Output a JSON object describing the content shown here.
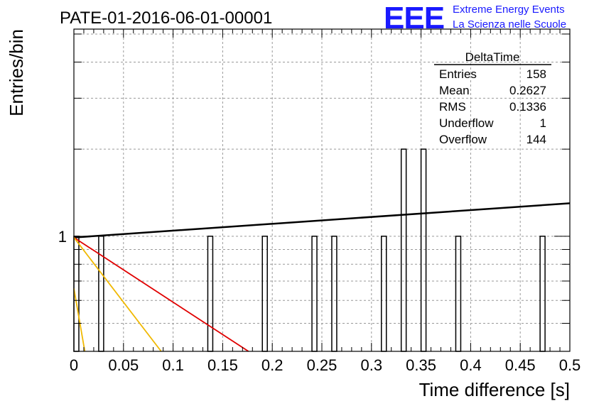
{
  "header": {
    "title": "PATE-01-2016-06-01-00001",
    "logo_text": "EEE",
    "logo_line1": "Extreme Energy Events",
    "logo_line2": "La Scienza nelle Scuole",
    "logo_color": "#1a1aff"
  },
  "stats_box": {
    "title": "DeltaTime",
    "rows": [
      {
        "label": "Entries",
        "value": "158"
      },
      {
        "label": "Mean",
        "value": "0.2627"
      },
      {
        "label": "RMS",
        "value": "0.1336"
      },
      {
        "label": "Underflow",
        "value": "1"
      },
      {
        "label": "Overflow",
        "value": "144"
      }
    ]
  },
  "chart_data": {
    "type": "bar",
    "title": "PATE-01-2016-06-01-00001",
    "xlabel": "Time difference [s]",
    "ylabel": "Entries/bin",
    "xlim": [
      0,
      0.5
    ],
    "ylim": [
      0.4,
      5.2
    ],
    "yscale": "log",
    "grid": true,
    "bin_width": 0.005,
    "xticks": [
      "0",
      "0.05",
      "0.1",
      "0.15",
      "0.2",
      "0.25",
      "0.3",
      "0.35",
      "0.4",
      "0.45",
      "0.5"
    ],
    "ytick_labels": [
      {
        "value": 1,
        "label": "1"
      }
    ],
    "bins": [
      {
        "x0": 0.0,
        "y": 1
      },
      {
        "x0": 0.025,
        "y": 1
      },
      {
        "x0": 0.135,
        "y": 1
      },
      {
        "x0": 0.19,
        "y": 1
      },
      {
        "x0": 0.24,
        "y": 1
      },
      {
        "x0": 0.26,
        "y": 1
      },
      {
        "x0": 0.31,
        "y": 1
      },
      {
        "x0": 0.33,
        "y": 2
      },
      {
        "x0": 0.35,
        "y": 2
      },
      {
        "x0": 0.385,
        "y": 1
      },
      {
        "x0": 0.47,
        "y": 1
      }
    ],
    "fit_lines": [
      {
        "color": "#000000",
        "points": [
          [
            0.0,
            0.99
          ],
          [
            0.5,
            1.3
          ]
        ]
      },
      {
        "color": "#e00000",
        "points": [
          [
            0.0,
            0.99
          ],
          [
            0.176,
            0.4
          ]
        ]
      },
      {
        "color": "#f0b800",
        "points": [
          [
            0.0,
            0.99
          ],
          [
            0.088,
            0.4
          ]
        ]
      },
      {
        "color": "#f0b800",
        "points": [
          [
            0.0,
            0.66
          ],
          [
            0.011,
            0.4
          ]
        ]
      }
    ]
  }
}
